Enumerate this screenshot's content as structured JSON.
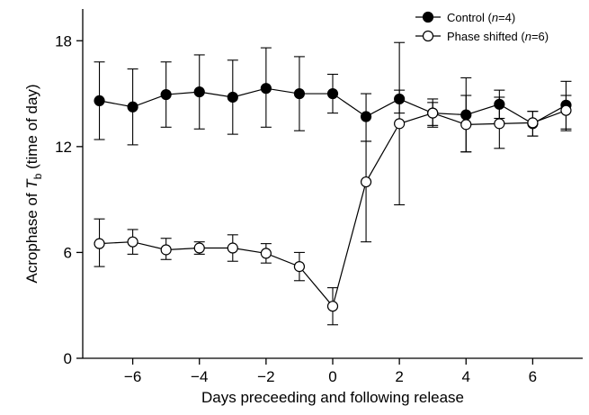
{
  "chart_data": {
    "type": "line",
    "xlabel": "Days preceeding and following release",
    "ylabel": {
      "prefix": "Acrophase of ",
      "italic": "T",
      "sub": "b",
      "suffix": " (time of day)"
    },
    "xlim": [
      -7.5,
      7.5
    ],
    "ylim": [
      0,
      19.8
    ],
    "xticks": [
      -6,
      -4,
      -2,
      0,
      2,
      4,
      6
    ],
    "xtick_labels": [
      "−6",
      "−4",
      "−2",
      "0",
      "2",
      "4",
      "6"
    ],
    "yticks": [
      0,
      6,
      12,
      18
    ],
    "ytick_labels": [
      "0",
      "6",
      "12",
      "18"
    ],
    "legend_position": "top-right",
    "x": [
      -7,
      -6,
      -5,
      -4,
      -3,
      -2,
      -1,
      0,
      1,
      2,
      3,
      4,
      5,
      6,
      7
    ],
    "series": [
      {
        "name": {
          "prefix": "Control (",
          "italic": "n",
          "suffix": "=4)"
        },
        "marker": "filled-circle",
        "values": [
          14.6,
          14.25,
          14.95,
          15.1,
          14.8,
          15.3,
          15.0,
          15.0,
          13.7,
          14.7,
          13.9,
          13.8,
          14.4,
          13.3,
          14.35
        ],
        "err_low": [
          12.4,
          12.1,
          13.1,
          13.0,
          12.7,
          13.1,
          12.9,
          13.9,
          12.3,
          13.9,
          13.2,
          11.7,
          13.6,
          12.6,
          13.0
        ],
        "err_high": [
          16.8,
          16.4,
          16.8,
          17.2,
          16.9,
          17.6,
          17.1,
          16.1,
          15.0,
          17.9,
          14.5,
          15.9,
          15.2,
          14.0,
          15.7
        ]
      },
      {
        "name": {
          "prefix": "Phase shifted (",
          "italic": "n",
          "suffix": "=6)"
        },
        "marker": "open-circle",
        "values": [
          6.5,
          6.6,
          6.15,
          6.25,
          6.25,
          5.95,
          5.2,
          2.95,
          10.0,
          13.3,
          13.9,
          13.25,
          13.3,
          13.35,
          14.05
        ],
        "err_low": [
          5.2,
          5.9,
          5.6,
          5.9,
          5.5,
          5.4,
          4.4,
          1.9,
          6.6,
          8.7,
          13.1,
          11.7,
          11.9,
          12.6,
          12.9
        ],
        "err_high": [
          7.9,
          7.3,
          6.8,
          6.6,
          7.0,
          6.5,
          6.0,
          4.0,
          12.3,
          15.2,
          14.7,
          14.9,
          14.8,
          14.0,
          14.9
        ]
      }
    ]
  }
}
